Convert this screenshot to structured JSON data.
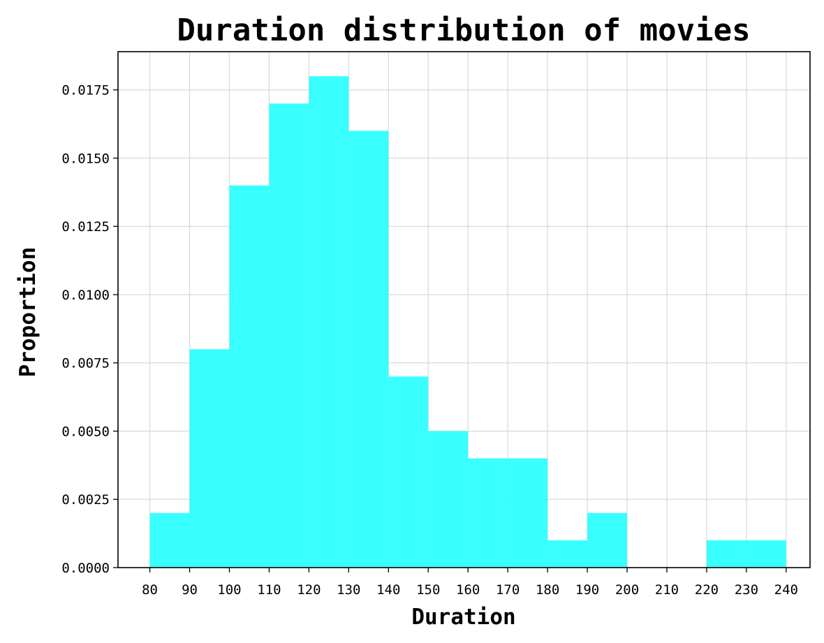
{
  "chart_data": {
    "type": "bar",
    "histogram": true,
    "title": "Duration distribution of movies",
    "xlabel": "Duration",
    "ylabel": "Proportion",
    "bin_edges": [
      80,
      90,
      100,
      110,
      120,
      130,
      140,
      150,
      160,
      170,
      180,
      190,
      200,
      210,
      220,
      230,
      240
    ],
    "values": [
      0.002,
      0.008,
      0.014,
      0.017,
      0.018,
      0.016,
      0.007,
      0.005,
      0.004,
      0.004,
      0.001,
      0.002,
      0.0,
      0.0,
      0.001,
      0.001
    ],
    "xlim": [
      72,
      246
    ],
    "ylim": [
      0,
      0.0189
    ],
    "x_ticks": [
      "80",
      "90",
      "100",
      "110",
      "120",
      "130",
      "140",
      "150",
      "160",
      "170",
      "180",
      "190",
      "200",
      "210",
      "220",
      "230",
      "240"
    ],
    "y_ticks": [
      "0.0000",
      "0.0025",
      "0.0050",
      "0.0075",
      "0.0100",
      "0.0125",
      "0.0150",
      "0.0175"
    ],
    "grid": true,
    "bar_color": "#33FFFF"
  }
}
